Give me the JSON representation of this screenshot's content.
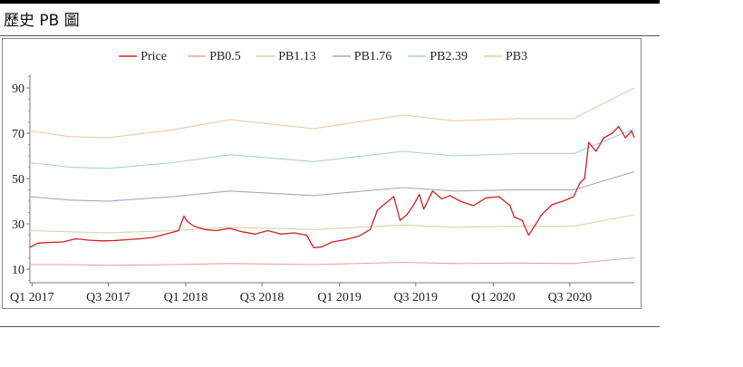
{
  "page": {
    "title": "歷史 PB 圖"
  },
  "chart_data": {
    "type": "line",
    "title": "",
    "xlabel": "",
    "ylabel": "",
    "ylim": [
      4,
      96
    ],
    "yticks": [
      10,
      30,
      50,
      70,
      90
    ],
    "x_range": [
      "2016-12-27",
      "2020-12-01"
    ],
    "xticks": [
      {
        "label": "Q1 2017",
        "date": "2017-01-01"
      },
      {
        "label": "Q3 2017",
        "date": "2017-07-01"
      },
      {
        "label": "Q1 2018",
        "date": "2018-01-01"
      },
      {
        "label": "Q3 2018",
        "date": "2018-07-01"
      },
      {
        "label": "Q1 2019",
        "date": "2019-01-01"
      },
      {
        "label": "Q3 2019",
        "date": "2019-07-01"
      },
      {
        "label": "Q1 2020",
        "date": "2020-01-01"
      },
      {
        "label": "Q3 2020",
        "date": "2020-07-01"
      }
    ],
    "legend": {
      "position": "top-center"
    },
    "series": [
      {
        "name": "Price",
        "color": "#d22020",
        "points": [
          [
            "2016-12-27",
            19.6
          ],
          [
            "2017-01-15",
            21.5
          ],
          [
            "2017-02-15",
            21.8
          ],
          [
            "2017-03-15",
            22.0
          ],
          [
            "2017-04-15",
            23.4
          ],
          [
            "2017-05-15",
            22.8
          ],
          [
            "2017-06-15",
            22.5
          ],
          [
            "2017-07-15",
            22.6
          ],
          [
            "2017-08-15",
            23.0
          ],
          [
            "2017-09-15",
            23.4
          ],
          [
            "2017-10-15",
            24.0
          ],
          [
            "2017-11-15",
            25.5
          ],
          [
            "2017-12-15",
            27.0
          ],
          [
            "2017-12-28",
            33.5
          ],
          [
            "2018-01-05",
            31.0
          ],
          [
            "2018-01-20",
            29.0
          ],
          [
            "2018-02-15",
            27.5
          ],
          [
            "2018-03-15",
            27.0
          ],
          [
            "2018-04-15",
            28.0
          ],
          [
            "2018-05-15",
            26.5
          ],
          [
            "2018-06-15",
            25.5
          ],
          [
            "2018-07-15",
            27.0
          ],
          [
            "2018-08-15",
            25.5
          ],
          [
            "2018-09-15",
            26.0
          ],
          [
            "2018-10-15",
            25.0
          ],
          [
            "2018-11-01",
            19.5
          ],
          [
            "2018-11-20",
            19.8
          ],
          [
            "2018-12-15",
            22.0
          ],
          [
            "2019-01-15",
            23.0
          ],
          [
            "2019-02-15",
            24.5
          ],
          [
            "2019-03-15",
            27.5
          ],
          [
            "2019-04-01",
            36.0
          ],
          [
            "2019-04-20",
            39.0
          ],
          [
            "2019-05-10",
            42.0
          ],
          [
            "2019-05-25",
            31.5
          ],
          [
            "2019-06-10",
            34.0
          ],
          [
            "2019-06-25",
            38.0
          ],
          [
            "2019-07-10",
            43.0
          ],
          [
            "2019-07-20",
            36.5
          ],
          [
            "2019-08-10",
            44.5
          ],
          [
            "2019-09-01",
            41.0
          ],
          [
            "2019-09-20",
            42.5
          ],
          [
            "2019-10-15",
            40.0
          ],
          [
            "2019-11-15",
            38.0
          ],
          [
            "2019-12-15",
            41.5
          ],
          [
            "2020-01-15",
            42.0
          ],
          [
            "2020-02-10",
            38.0
          ],
          [
            "2020-02-20",
            33.0
          ],
          [
            "2020-03-10",
            31.5
          ],
          [
            "2020-03-25",
            25.0
          ],
          [
            "2020-04-05",
            28.0
          ],
          [
            "2020-04-25",
            34.0
          ],
          [
            "2020-05-20",
            38.5
          ],
          [
            "2020-06-15",
            40.0
          ],
          [
            "2020-07-10",
            42.0
          ],
          [
            "2020-07-25",
            48.0
          ],
          [
            "2020-08-05",
            50.0
          ],
          [
            "2020-08-15",
            66.0
          ],
          [
            "2020-09-01",
            62.0
          ],
          [
            "2020-09-20",
            68.0
          ],
          [
            "2020-10-10",
            70.0
          ],
          [
            "2020-10-25",
            73.0
          ],
          [
            "2020-11-10",
            68.0
          ],
          [
            "2020-11-25",
            71.0
          ],
          [
            "2020-12-01",
            68.0
          ]
        ]
      },
      {
        "name": "PB0.5",
        "color": "#e8a0a0",
        "points": [
          [
            "2016-12-27",
            12.0
          ],
          [
            "2017-04-01",
            12.0
          ],
          [
            "2017-07-01",
            11.7
          ],
          [
            "2017-12-01",
            12.0
          ],
          [
            "2018-04-15",
            12.5
          ],
          [
            "2018-11-01",
            12.0
          ],
          [
            "2019-06-01",
            13.0
          ],
          [
            "2019-10-01",
            12.5
          ],
          [
            "2020-03-01",
            12.7
          ],
          [
            "2020-07-10",
            12.5
          ],
          [
            "2020-12-01",
            15.0
          ]
        ]
      },
      {
        "name": "PB1.13",
        "color": "#ccd8a4",
        "points": [
          [
            "2016-12-27",
            27.0
          ],
          [
            "2017-04-01",
            26.5
          ],
          [
            "2017-07-01",
            26.0
          ],
          [
            "2017-12-01",
            27.0
          ],
          [
            "2018-04-15",
            28.5
          ],
          [
            "2018-11-01",
            27.5
          ],
          [
            "2019-06-01",
            29.5
          ],
          [
            "2019-10-01",
            28.5
          ],
          [
            "2020-03-01",
            29.0
          ],
          [
            "2020-07-10",
            29.0
          ],
          [
            "2020-12-01",
            34.0
          ]
        ]
      },
      {
        "name": "PB1.76",
        "color": "#a8a0cc",
        "points": [
          [
            "2016-12-27",
            42.0
          ],
          [
            "2017-04-01",
            40.5
          ],
          [
            "2017-07-01",
            40.0
          ],
          [
            "2017-12-01",
            42.0
          ],
          [
            "2018-04-15",
            44.5
          ],
          [
            "2018-11-01",
            42.5
          ],
          [
            "2019-06-01",
            46.0
          ],
          [
            "2019-10-01",
            44.5
          ],
          [
            "2020-03-01",
            45.0
          ],
          [
            "2020-07-10",
            45.0
          ],
          [
            "2020-12-01",
            53.0
          ]
        ]
      },
      {
        "name": "PB2.39",
        "color": "#a8cce4",
        "points": [
          [
            "2016-12-27",
            57.0
          ],
          [
            "2017-04-01",
            55.0
          ],
          [
            "2017-07-01",
            54.5
          ],
          [
            "2017-12-01",
            57.0
          ],
          [
            "2018-04-15",
            60.5
          ],
          [
            "2018-11-01",
            57.5
          ],
          [
            "2019-06-01",
            62.0
          ],
          [
            "2019-10-01",
            60.0
          ],
          [
            "2020-03-01",
            61.0
          ],
          [
            "2020-07-10",
            61.0
          ],
          [
            "2020-12-01",
            72.0
          ]
        ]
      },
      {
        "name": "PB3",
        "color": "#f0c8a0",
        "points": [
          [
            "2016-12-27",
            71.0
          ],
          [
            "2017-04-01",
            68.5
          ],
          [
            "2017-07-01",
            68.0
          ],
          [
            "2017-12-01",
            71.5
          ],
          [
            "2018-04-15",
            76.0
          ],
          [
            "2018-11-01",
            72.0
          ],
          [
            "2019-06-01",
            78.0
          ],
          [
            "2019-10-01",
            75.5
          ],
          [
            "2020-03-01",
            76.5
          ],
          [
            "2020-07-10",
            76.5
          ],
          [
            "2020-12-01",
            90.0
          ]
        ]
      }
    ]
  }
}
